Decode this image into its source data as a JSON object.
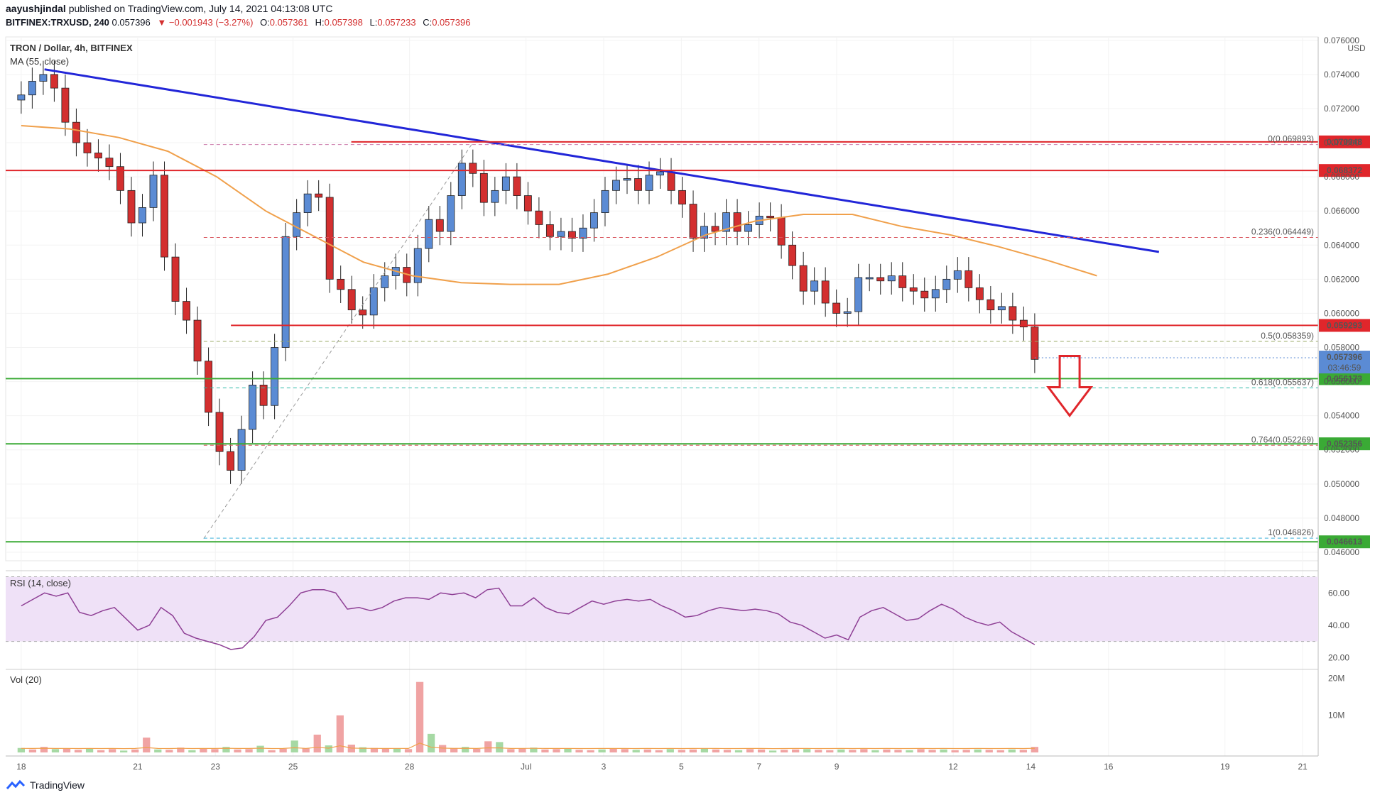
{
  "header": {
    "author": "aayushjindal",
    "published": "published on TradingView.com, July 14, 2021 04:13:08 UTC",
    "symbol": "BITFINEX:TRXUSD, 240",
    "last": "0.057396",
    "change": "−0.001943 (−3.27%)",
    "open": "0.057361",
    "high": "0.057398",
    "low": "0.057233",
    "close": "0.057396"
  },
  "chart_data": {
    "type": "candlestick",
    "title": "TRON / Dollar, 4h, BITFINEX",
    "indicator_ma": "MA (55, close)",
    "currency": "USD",
    "ylim": [
      0.0455,
      0.0762
    ],
    "y_ticks": [
      "0.076000",
      "0.074000",
      "0.072000",
      "0.070000",
      "0.068000",
      "0.066000",
      "0.064000",
      "0.062000",
      "0.060000",
      "0.058000",
      "0.056000",
      "0.054000",
      "0.052000",
      "0.050000",
      "0.048000",
      "0.046000"
    ],
    "x_ticks": [
      "18",
      "21",
      "23",
      "25",
      "28",
      "Jul",
      "3",
      "5",
      "7",
      "9",
      "12",
      "14",
      "16",
      "19",
      "21"
    ],
    "x_tick_days": [
      18,
      21,
      23,
      25,
      28,
      31,
      33,
      35,
      37,
      39,
      42,
      44,
      46,
      49,
      51
    ],
    "close_series": [
      0.0728,
      0.0736,
      0.074,
      0.0732,
      0.0712,
      0.07,
      0.0694,
      0.0691,
      0.0686,
      0.0672,
      0.0653,
      0.0662,
      0.0681,
      0.0633,
      0.0607,
      0.0596,
      0.0572,
      0.0542,
      0.0519,
      0.0508,
      0.0532,
      0.0558,
      0.0546,
      0.058,
      0.0645,
      0.0659,
      0.067,
      0.0668,
      0.062,
      0.0614,
      0.0602,
      0.0599,
      0.0615,
      0.0622,
      0.0627,
      0.0618,
      0.0638,
      0.0655,
      0.0648,
      0.0669,
      0.0688,
      0.0682,
      0.0665,
      0.0672,
      0.068,
      0.0669,
      0.066,
      0.0652,
      0.0645,
      0.0648,
      0.0644,
      0.065,
      0.0659,
      0.0672,
      0.0678,
      0.0679,
      0.0672,
      0.0681,
      0.0683,
      0.0672,
      0.0664,
      0.0644,
      0.0651,
      0.0648,
      0.0659,
      0.0648,
      0.0652,
      0.0657,
      0.0656,
      0.064,
      0.0628,
      0.0613,
      0.0619,
      0.0606,
      0.06,
      0.0601,
      0.0621,
      0.0621,
      0.0619,
      0.0622,
      0.0615,
      0.0613,
      0.0609,
      0.0614,
      0.062,
      0.0625,
      0.0615,
      0.0608,
      0.0602,
      0.0604,
      0.0596,
      0.0592,
      0.0573
    ],
    "ma55_series": [
      0.071,
      0.0708,
      0.0703,
      0.0695,
      0.068,
      0.066,
      0.0645,
      0.063,
      0.0622,
      0.0618,
      0.0617,
      0.0617,
      0.0623,
      0.0633,
      0.0646,
      0.0654,
      0.0658,
      0.0658,
      0.0651,
      0.0646,
      0.0639,
      0.0631,
      0.0622
    ],
    "volume_max": "20M",
    "vol_ticks": [
      "20M",
      "10M"
    ],
    "levels": {
      "resistance_1": "0.070048",
      "resistance_2": "0.068372",
      "resistance_3": "0.059293",
      "support_1": "0.056173",
      "support_2": "0.052356",
      "support_3": "0.046613",
      "current": "0.057396",
      "countdown": "03:46:59"
    },
    "fib": {
      "f0": "0(0.069893)",
      "f236": "0.236(0.064449)",
      "f5": "0.5(0.058359)",
      "f618": "0.618(0.055637)",
      "f764": "0.764(0.052269)",
      "f1": "1(0.046826)"
    },
    "rsi": {
      "label": "RSI (14, close)",
      "ticks": [
        "60.00",
        "40.00",
        "20.00"
      ],
      "series": [
        52,
        56,
        60,
        58,
        60,
        48,
        46,
        49,
        51,
        44,
        37,
        40,
        51,
        46,
        35,
        32,
        30,
        28,
        25,
        26,
        33,
        43,
        45,
        52,
        60,
        62,
        62,
        60,
        50,
        51,
        49,
        51,
        55,
        57,
        57,
        56,
        60,
        59,
        60,
        57,
        62,
        63,
        52,
        52,
        57,
        51,
        48,
        47,
        51,
        55,
        53,
        55,
        56,
        55,
        56,
        52,
        49,
        45,
        46,
        49,
        51,
        50,
        49,
        50,
        49,
        47,
        42,
        40,
        36,
        32,
        34,
        31,
        45,
        49,
        51,
        47,
        43,
        44,
        49,
        53,
        50,
        45,
        42,
        40,
        42,
        36,
        32,
        28
      ]
    },
    "volume_series": [
      1.2,
      0.8,
      1.5,
      0.9,
      1.1,
      0.7,
      1.0,
      0.6,
      0.9,
      0.5,
      0.8,
      4.0,
      0.8,
      0.7,
      1.3,
      0.6,
      1.0,
      0.9,
      1.5,
      0.8,
      0.9,
      1.8,
      0.6,
      1.0,
      3.2,
      1.1,
      4.8,
      1.9,
      10.0,
      2.1,
      1.4,
      1.2,
      1.0,
      1.1,
      0.9,
      19.0,
      5.0,
      2.0,
      1.2,
      1.5,
      1.0,
      3.0,
      2.8,
      0.9,
      1.1,
      1.3,
      0.8,
      0.9,
      1.0,
      0.7,
      0.6,
      0.8,
      1.0,
      0.9,
      0.7,
      0.8,
      0.6,
      0.9,
      0.7,
      0.8,
      1.1,
      0.8,
      0.7,
      0.6,
      0.9,
      0.8,
      0.5,
      0.7,
      0.8,
      0.9,
      0.7,
      0.6,
      0.8,
      0.7,
      0.9,
      0.6,
      0.8,
      0.7,
      0.6,
      0.9,
      0.7,
      0.8,
      0.6,
      0.7,
      0.8,
      0.7,
      0.6,
      0.8,
      0.7,
      1.5
    ]
  },
  "footer": {
    "brand": "TradingView"
  },
  "colors": {
    "bull": "#5b8bd4",
    "bear": "#d32f2f",
    "ma": "#f0a04b",
    "trend": "#2226d8",
    "red_level": "#e0262b",
    "green_level": "#3aaa35",
    "rsi": "#8e3f95",
    "rsi_band": "#efe1f7"
  }
}
